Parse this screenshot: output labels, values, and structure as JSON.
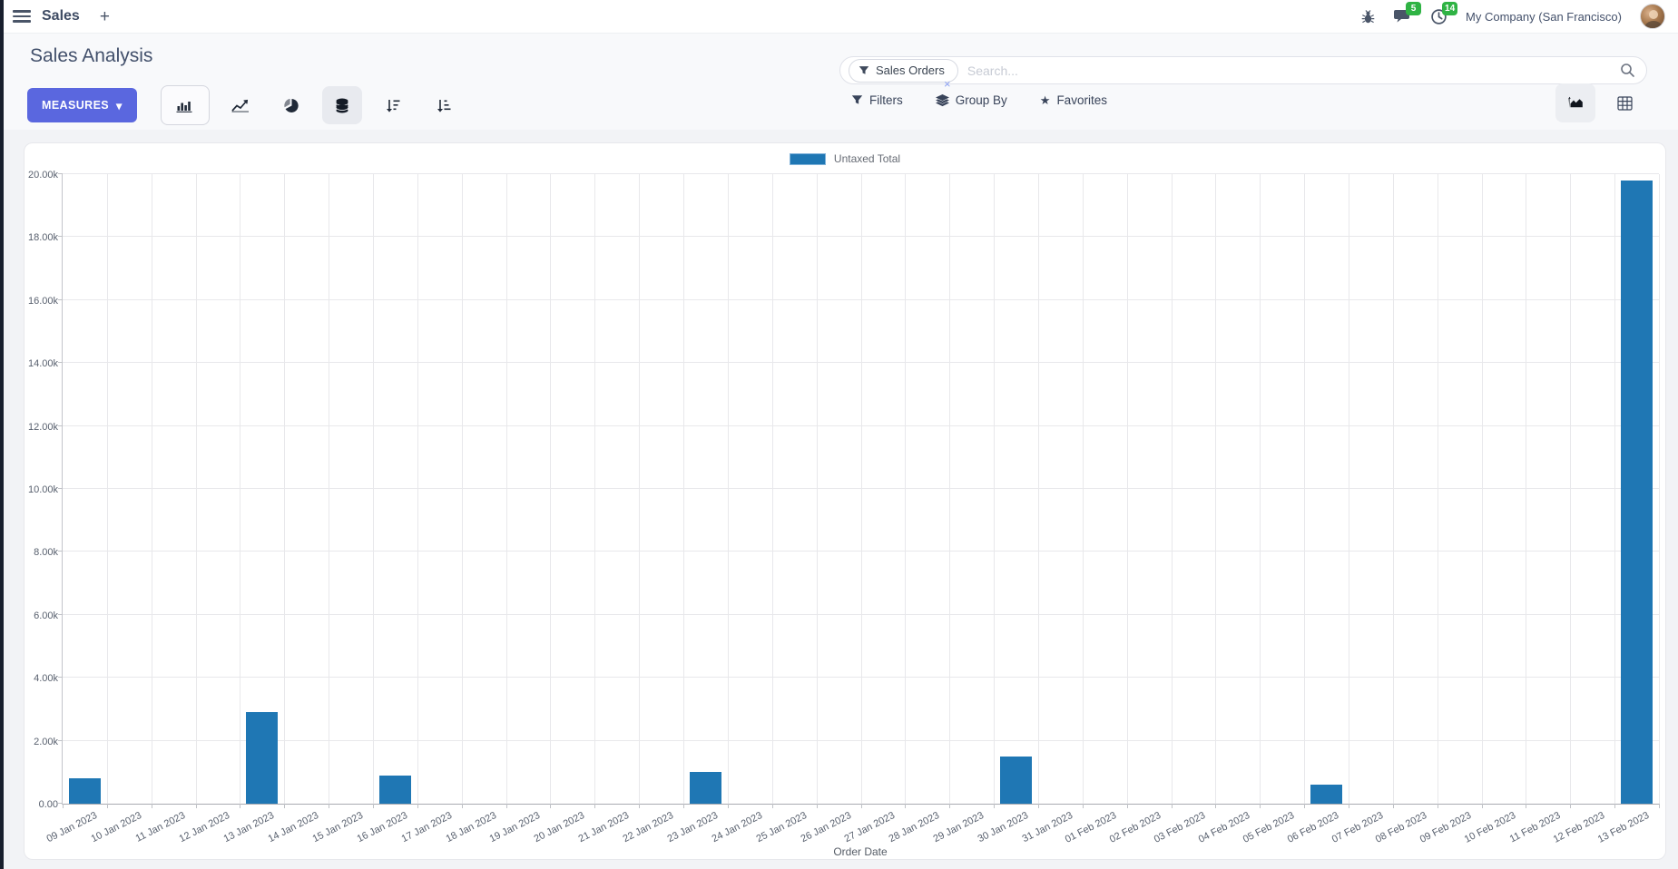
{
  "navbar": {
    "app_label": "Sales",
    "messages_badge": "5",
    "activities_badge": "14",
    "company": "My Company (San Francisco)"
  },
  "icons": {
    "plus": "+",
    "caret_down": "▾",
    "star": "★",
    "close": "×"
  },
  "control_panel": {
    "title": "Sales Analysis",
    "measures_label": "MEASURES",
    "search": {
      "facet_label": "Sales Orders",
      "placeholder": "Search..."
    },
    "filters_label": "Filters",
    "group_by_label": "Group By",
    "favorites_label": "Favorites"
  },
  "colors": {
    "primary_button": "#5a67df",
    "bar_series": "#1f77b4",
    "badge_green": "#2fb344"
  },
  "chart_data": {
    "type": "bar",
    "title": "",
    "xlabel": "Order Date",
    "ylabel": "",
    "ylim": [
      0,
      20000
    ],
    "ytick_step": 2000,
    "ytick_labels": [
      "0.00",
      "2.00k",
      "4.00k",
      "6.00k",
      "8.00k",
      "10.00k",
      "12.00k",
      "14.00k",
      "16.00k",
      "18.00k",
      "20.00k"
    ],
    "grid": true,
    "legend_position": "top",
    "categories": [
      "09 Jan 2023",
      "10 Jan 2023",
      "11 Jan 2023",
      "12 Jan 2023",
      "13 Jan 2023",
      "14 Jan 2023",
      "15 Jan 2023",
      "16 Jan 2023",
      "17 Jan 2023",
      "18 Jan 2023",
      "19 Jan 2023",
      "20 Jan 2023",
      "21 Jan 2023",
      "22 Jan 2023",
      "23 Jan 2023",
      "24 Jan 2023",
      "25 Jan 2023",
      "26 Jan 2023",
      "27 Jan 2023",
      "28 Jan 2023",
      "29 Jan 2023",
      "30 Jan 2023",
      "31 Jan 2023",
      "01 Feb 2023",
      "02 Feb 2023",
      "03 Feb 2023",
      "04 Feb 2023",
      "05 Feb 2023",
      "06 Feb 2023",
      "07 Feb 2023",
      "08 Feb 2023",
      "09 Feb 2023",
      "10 Feb 2023",
      "11 Feb 2023",
      "12 Feb 2023",
      "13 Feb 2023"
    ],
    "series": [
      {
        "name": "Untaxed Total",
        "color": "#1f77b4",
        "values": [
          800,
          0,
          0,
          0,
          2900,
          0,
          0,
          900,
          0,
          0,
          0,
          0,
          0,
          0,
          1000,
          0,
          0,
          0,
          0,
          0,
          0,
          1500,
          0,
          0,
          0,
          0,
          0,
          0,
          600,
          0,
          0,
          0,
          0,
          0,
          0,
          19800
        ]
      }
    ]
  }
}
